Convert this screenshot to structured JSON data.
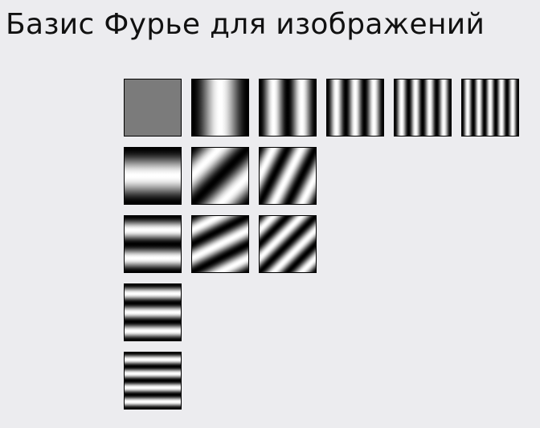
{
  "slide": {
    "title": "Базис Фурье для изображений"
  },
  "basis": {
    "description_frequencies": [
      {
        "kx": 0,
        "ky": 0,
        "label": "DC"
      },
      {
        "kx": 1,
        "ky": 0
      },
      {
        "kx": 2,
        "ky": 0
      },
      {
        "kx": 3,
        "ky": 0
      },
      {
        "kx": 4,
        "ky": 0
      },
      {
        "kx": 5,
        "ky": 0
      },
      {
        "kx": 0,
        "ky": 1
      },
      {
        "kx": 1,
        "ky": 1
      },
      {
        "kx": 2,
        "ky": 1
      },
      {
        "kx": 0,
        "ky": 2
      },
      {
        "kx": 1,
        "ky": 2
      },
      {
        "kx": 2,
        "ky": 2
      },
      {
        "kx": 0,
        "ky": 3
      },
      {
        "kx": 0,
        "ky": 4
      }
    ]
  },
  "colors": {
    "background": "#ececef",
    "dc_gray": "#7b7b7b",
    "dark": "#000000",
    "light": "#ffffff"
  }
}
